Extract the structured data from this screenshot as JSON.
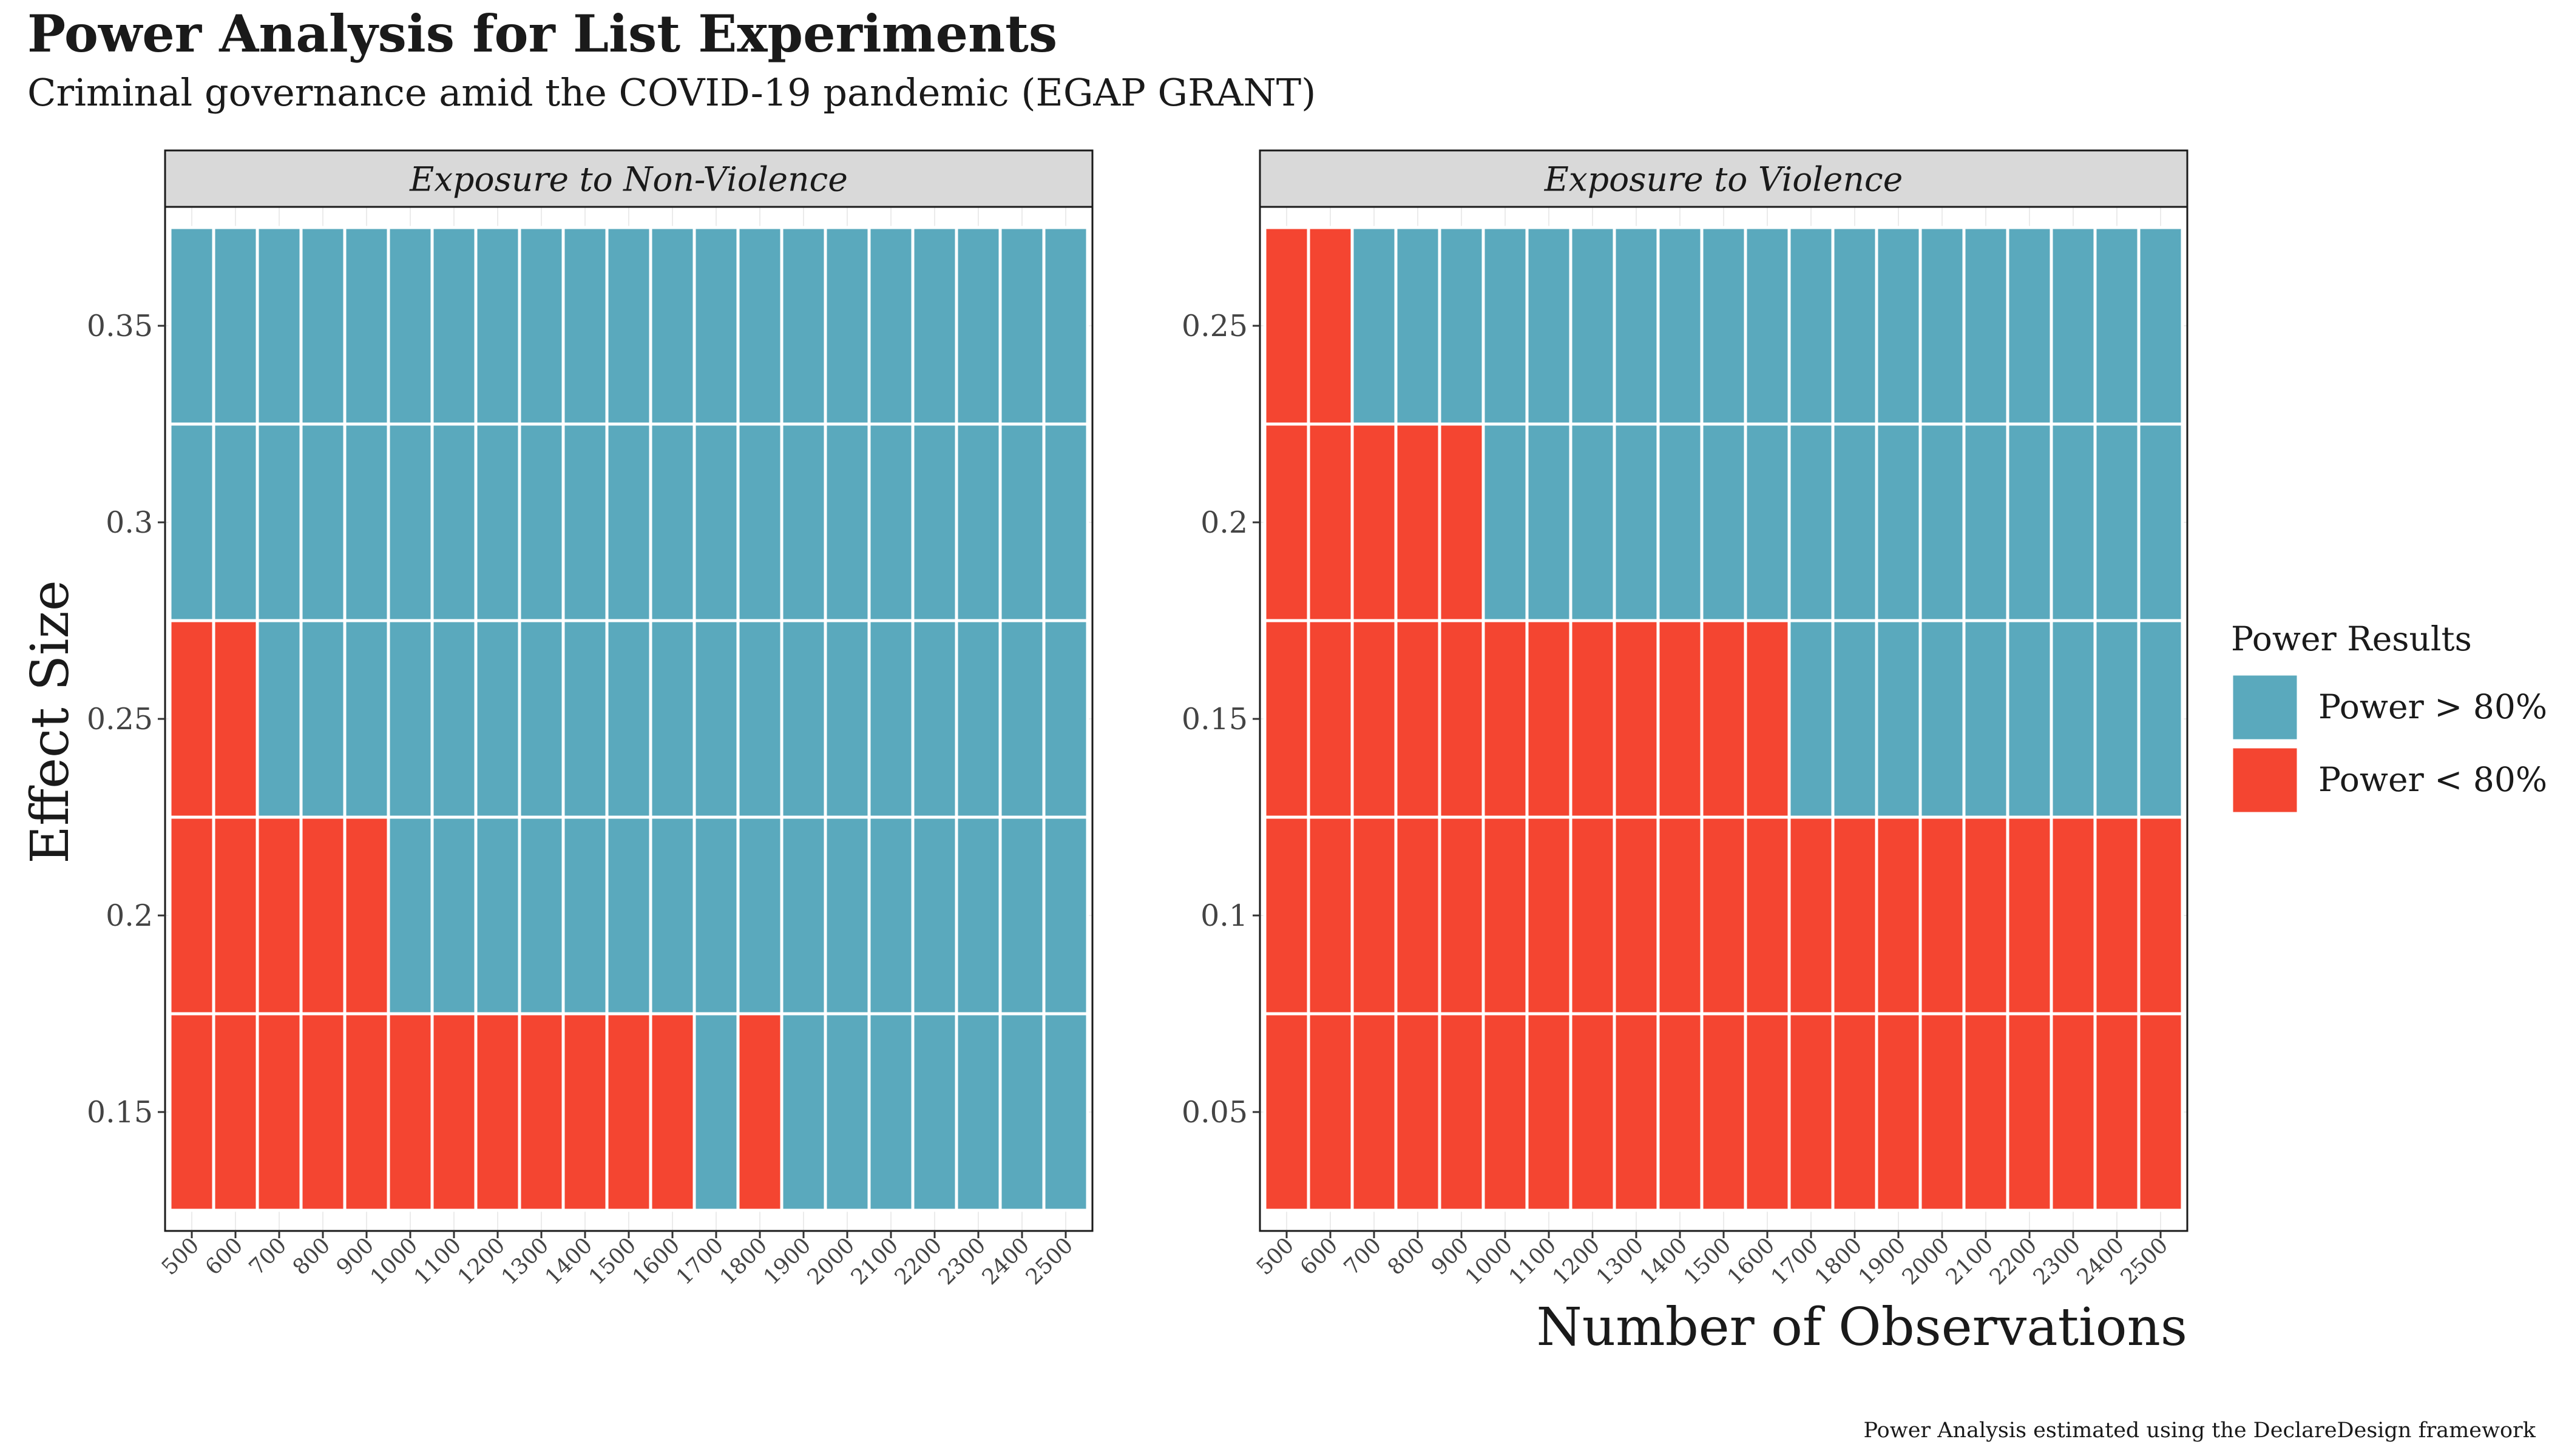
{
  "title": "Power Analysis for List Experiments",
  "subtitle": "Criminal governance amid the COVID-19 pandemic (EGAP GRANT)",
  "caption": "Power Analysis estimated using the DeclareDesign framework",
  "colors": {
    "above": "#5aa9bd",
    "below": "#f44531",
    "strip": "#d9d9d9"
  },
  "chart_data": {
    "type": "heatmap",
    "xlabel": "Number of Observations",
    "ylabel": "Effect Size",
    "x": [
      500,
      600,
      700,
      800,
      900,
      1000,
      1100,
      1200,
      1300,
      1400,
      1500,
      1600,
      1700,
      1800,
      1900,
      2000,
      2100,
      2200,
      2300,
      2400,
      2500
    ],
    "x_tick_labels": [
      "500",
      "600",
      "700",
      "800",
      "900",
      "1000",
      "1100",
      "1200",
      "1300",
      "1400",
      "1500",
      "1600",
      "1700",
      "1800",
      "1900",
      "2000",
      "2100",
      "2200",
      "2300",
      "2400",
      "2500"
    ],
    "legend": {
      "title": "Power Results",
      "position": "right",
      "entries": [
        {
          "key": "above",
          "label": "Power > 80%"
        },
        {
          "key": "below",
          "label": "Power < 80%"
        }
      ]
    },
    "grid": true,
    "panels": [
      {
        "title": "Exposure to Non-Violence",
        "y": [
          0.15,
          0.2,
          0.25,
          0.3,
          0.35
        ],
        "y_tick_labels": [
          "0.15",
          "0.2",
          "0.25",
          "0.3",
          "0.35"
        ],
        "ylim": [
          0.125,
          0.375
        ],
        "power_above_80": [
          [
            0,
            0,
            0,
            0,
            0,
            0,
            0,
            0,
            0,
            0,
            0,
            0,
            1,
            0,
            1,
            1,
            1,
            1,
            1,
            1,
            1
          ],
          [
            0,
            0,
            0,
            0,
            0,
            1,
            1,
            1,
            1,
            1,
            1,
            1,
            1,
            1,
            1,
            1,
            1,
            1,
            1,
            1,
            1
          ],
          [
            0,
            0,
            1,
            1,
            1,
            1,
            1,
            1,
            1,
            1,
            1,
            1,
            1,
            1,
            1,
            1,
            1,
            1,
            1,
            1,
            1
          ],
          [
            1,
            1,
            1,
            1,
            1,
            1,
            1,
            1,
            1,
            1,
            1,
            1,
            1,
            1,
            1,
            1,
            1,
            1,
            1,
            1,
            1
          ],
          [
            1,
            1,
            1,
            1,
            1,
            1,
            1,
            1,
            1,
            1,
            1,
            1,
            1,
            1,
            1,
            1,
            1,
            1,
            1,
            1,
            1
          ]
        ]
      },
      {
        "title": "Exposure to Violence",
        "y": [
          0.05,
          0.1,
          0.15,
          0.2,
          0.25
        ],
        "y_tick_labels": [
          "0.05",
          "0.1",
          "0.15",
          "0.2",
          "0.25"
        ],
        "ylim": [
          0.025,
          0.275
        ],
        "power_above_80": [
          [
            0,
            0,
            0,
            0,
            0,
            0,
            0,
            0,
            0,
            0,
            0,
            0,
            0,
            0,
            0,
            0,
            0,
            0,
            0,
            0,
            0
          ],
          [
            0,
            0,
            0,
            0,
            0,
            0,
            0,
            0,
            0,
            0,
            0,
            0,
            0,
            0,
            0,
            0,
            0,
            0,
            0,
            0,
            0
          ],
          [
            0,
            0,
            0,
            0,
            0,
            0,
            0,
            0,
            0,
            0,
            0,
            0,
            1,
            1,
            1,
            1,
            1,
            1,
            1,
            1,
            1
          ],
          [
            0,
            0,
            0,
            0,
            0,
            1,
            1,
            1,
            1,
            1,
            1,
            1,
            1,
            1,
            1,
            1,
            1,
            1,
            1,
            1,
            1
          ],
          [
            0,
            0,
            1,
            1,
            1,
            1,
            1,
            1,
            1,
            1,
            1,
            1,
            1,
            1,
            1,
            1,
            1,
            1,
            1,
            1,
            1
          ]
        ]
      }
    ]
  }
}
